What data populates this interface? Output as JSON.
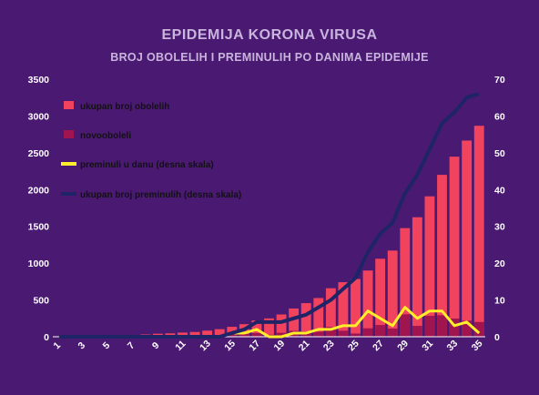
{
  "chart_data": {
    "type": "bar",
    "title": "EPIDEMIJA KORONA VIRUSA",
    "subtitle": "BROJ OBOLELIH I PREMINULIH PO DANIMA EPIDEMIJE",
    "x": [
      1,
      2,
      3,
      4,
      5,
      6,
      7,
      8,
      9,
      10,
      11,
      12,
      13,
      14,
      15,
      16,
      17,
      18,
      19,
      20,
      21,
      22,
      23,
      24,
      25,
      26,
      27,
      28,
      29,
      30,
      31,
      32,
      33,
      34,
      35
    ],
    "x_tick_labels": [
      "1",
      "3",
      "5",
      "7",
      "9",
      "11",
      "13",
      "15",
      "17",
      "19",
      "21",
      "23",
      "25",
      "27",
      "29",
      "31",
      "33",
      "35"
    ],
    "ylim_left": [
      0,
      3500
    ],
    "y_ticks_left": [
      "0",
      "500",
      "1000",
      "1500",
      "2000",
      "2500",
      "3000",
      "3500"
    ],
    "ylim_right": [
      0,
      70
    ],
    "y_ticks_right": [
      "0",
      "10",
      "20",
      "30",
      "40",
      "50",
      "60",
      "70"
    ],
    "grid": false,
    "legend_position": "top-left",
    "series": [
      {
        "name": "ukupan broj obolelih",
        "type": "bar",
        "axis": "left",
        "color": "#f2435e",
        "values": [
          1,
          2,
          4,
          5,
          12,
          19,
          24,
          31,
          41,
          46,
          57,
          65,
          83,
          103,
          135,
          171,
          222,
          249,
          303,
          384,
          457,
          526,
          659,
          741,
          785,
          900,
          1060,
          1171,
          1476,
          1624,
          1908,
          2200,
          2447,
          2666,
          2867
        ]
      },
      {
        "name": "novooboleli",
        "type": "bar",
        "axis": "left",
        "color": "#a0154f",
        "values": [
          1,
          1,
          2,
          1,
          7,
          7,
          5,
          7,
          10,
          5,
          11,
          8,
          18,
          20,
          32,
          36,
          51,
          27,
          54,
          81,
          73,
          69,
          133,
          82,
          44,
          115,
          160,
          111,
          305,
          148,
          284,
          292,
          247,
          219,
          201
        ]
      },
      {
        "name": "preminuli u danu (desna skala)",
        "type": "line",
        "axis": "right",
        "color": "#ffee2a",
        "values": [
          0,
          0,
          0,
          0,
          0,
          0,
          0,
          0,
          0,
          0,
          0,
          0,
          0,
          0,
          1,
          1,
          2,
          0,
          0,
          1,
          1,
          2,
          2,
          3,
          3,
          7,
          5,
          3,
          8,
          5,
          7,
          7,
          3,
          4,
          1
        ]
      },
      {
        "name": "ukupan broj preminulih (desna skala)",
        "type": "line",
        "axis": "right",
        "color": "#1e2466",
        "values": [
          0,
          0,
          0,
          0,
          0,
          0,
          0,
          0,
          0,
          0,
          0,
          0,
          0,
          0,
          1,
          2,
          4,
          4,
          4,
          5,
          6,
          8,
          10,
          13,
          16,
          23,
          28,
          31,
          39,
          44,
          51,
          58,
          61,
          65,
          66
        ]
      }
    ]
  }
}
